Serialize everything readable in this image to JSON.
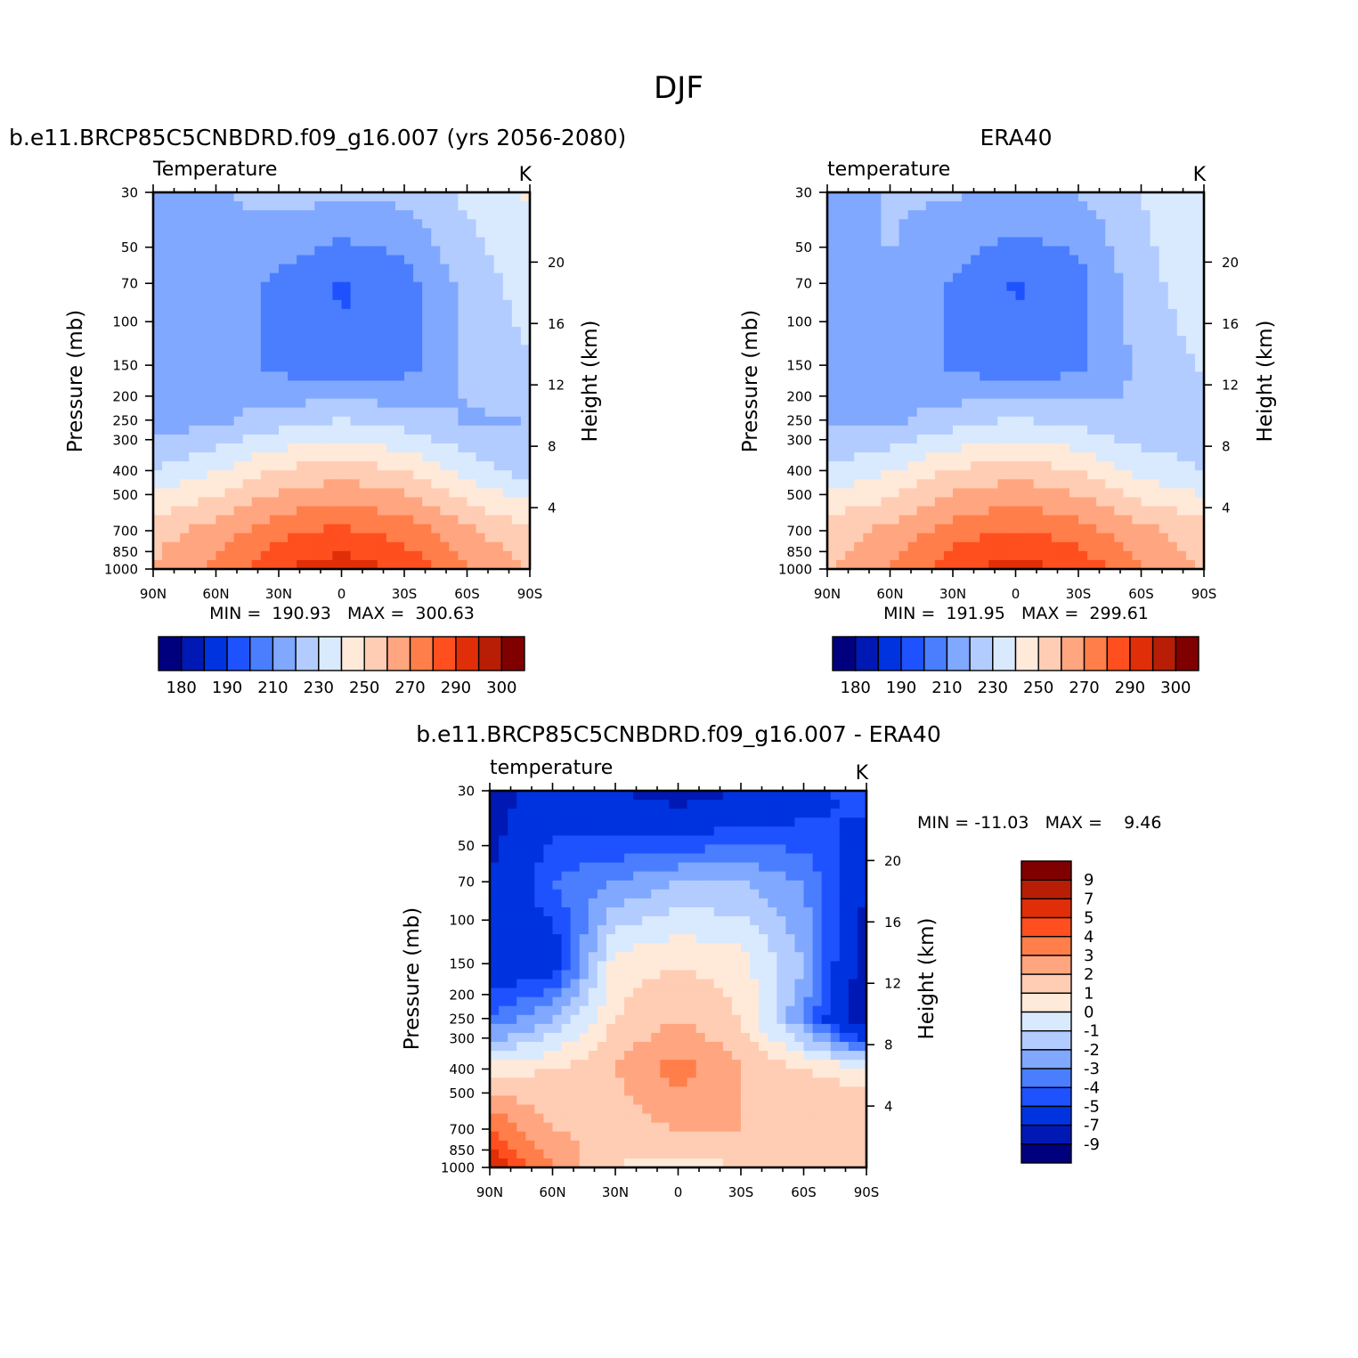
{
  "figure": {
    "title": "DJF"
  },
  "chart_data": [
    {
      "type": "heatmap",
      "id": "model",
      "title": "b.e11.BRCP85C5CNBDRD.f09_g16.007 (yrs 2056-2080)",
      "left_label": "Temperature",
      "units": "K",
      "ylabel": "Pressure (mb)",
      "y2label": "Height (km)",
      "x_ticks": [
        "90N",
        "60N",
        "30N",
        "0",
        "30S",
        "60S",
        "90S"
      ],
      "y_ticks": [
        30,
        50,
        70,
        100,
        150,
        200,
        250,
        300,
        400,
        500,
        700,
        850,
        1000
      ],
      "y2_ticks": [
        4,
        8,
        12,
        16,
        20
      ],
      "ylim": [
        1000,
        30
      ],
      "y_scale": "log",
      "stats_text": "MIN =  190.93   MAX =  300.63",
      "colorbar": {
        "orientation": "horizontal",
        "labels": [
          "180",
          "190",
          "210",
          "230",
          "250",
          "270",
          "290",
          "300"
        ],
        "levels": [
          180,
          185,
          190,
          200,
          210,
          220,
          230,
          240,
          250,
          260,
          270,
          280,
          290,
          295,
          300
        ],
        "colors": [
          "#00007f",
          "#0019b4",
          "#0033e0",
          "#1f52ff",
          "#4a7eff",
          "#80a8ff",
          "#b3ccff",
          "#d9eaff",
          "#ffe9d9",
          "#ffcdb3",
          "#ffa580",
          "#ff7e4a",
          "#ff4f1f",
          "#e02f08",
          "#b81e05",
          "#800000"
        ]
      },
      "grid": {
        "lat": [
          90,
          60,
          30,
          0,
          -30,
          -60,
          -90
        ],
        "levels_mb": [
          30,
          70,
          150,
          250,
          400,
          700,
          1000
        ],
        "values": [
          [
            211,
            219,
            224,
            222,
            223,
            232,
            241
          ],
          [
            213,
            217,
            207,
            199,
            205,
            224,
            235
          ],
          [
            214,
            217,
            207,
            201,
            206,
            222,
            229
          ],
          [
            214,
            218,
            225,
            230,
            225,
            219,
            220
          ],
          [
            231,
            239,
            251,
            256,
            250,
            236,
            226
          ],
          [
            256,
            264,
            277,
            282,
            276,
            262,
            252
          ],
          [
            261,
            272,
            289,
            296,
            288,
            272,
            258
          ]
        ]
      }
    },
    {
      "type": "heatmap",
      "id": "obs",
      "title": "ERA40",
      "left_label": "temperature",
      "units": "K",
      "ylabel": "Pressure (mb)",
      "y2label": "Height (km)",
      "x_ticks": [
        "90N",
        "60N",
        "30N",
        "0",
        "30S",
        "60S",
        "90S"
      ],
      "y_ticks": [
        30,
        50,
        70,
        100,
        150,
        200,
        250,
        300,
        400,
        500,
        700,
        850,
        1000
      ],
      "y2_ticks": [
        4,
        8,
        12,
        16,
        20
      ],
      "ylim": [
        1000,
        30
      ],
      "y_scale": "log",
      "stats_text": "MIN =  191.95   MAX =  299.61",
      "colorbar": {
        "orientation": "horizontal",
        "labels": [
          "180",
          "190",
          "210",
          "230",
          "250",
          "270",
          "290",
          "300"
        ],
        "levels": [
          180,
          185,
          190,
          200,
          210,
          220,
          230,
          240,
          250,
          260,
          270,
          280,
          290,
          295,
          300
        ],
        "colors": [
          "#00007f",
          "#0019b4",
          "#0033e0",
          "#1f52ff",
          "#4a7eff",
          "#80a8ff",
          "#b3ccff",
          "#d9eaff",
          "#ffe9d9",
          "#ffcdb3",
          "#ffa580",
          "#ff7e4a",
          "#ff4f1f",
          "#e02f08",
          "#b81e05",
          "#800000"
        ]
      },
      "grid": {
        "lat": [
          90,
          60,
          30,
          0,
          -30,
          -60,
          -90
        ],
        "levels_mb": [
          30,
          70,
          150,
          250,
          400,
          700,
          1000
        ],
        "values": [
          [
            213,
            221,
            221,
            219,
            220,
            230,
            240
          ],
          [
            215,
            220,
            209,
            199,
            206,
            226,
            237
          ],
          [
            216,
            218,
            208,
            202,
            207,
            223,
            231
          ],
          [
            217,
            218,
            225,
            231,
            226,
            220,
            225
          ],
          [
            232,
            239,
            251,
            256,
            250,
            237,
            229
          ],
          [
            255,
            263,
            275,
            281,
            275,
            263,
            254
          ],
          [
            259,
            270,
            287,
            295,
            287,
            271,
            258
          ]
        ]
      }
    },
    {
      "type": "heatmap",
      "id": "diff",
      "title": "b.e11.BRCP85C5CNBDRD.f09_g16.007 - ERA40",
      "left_label": "temperature",
      "units": "K",
      "ylabel": "Pressure (mb)",
      "y2label": "Height (km)",
      "x_ticks": [
        "90N",
        "60N",
        "30N",
        "0",
        "30S",
        "60S",
        "90S"
      ],
      "y_ticks": [
        30,
        50,
        70,
        100,
        150,
        200,
        250,
        300,
        400,
        500,
        700,
        850,
        1000
      ],
      "y2_ticks": [
        4,
        8,
        12,
        16,
        20
      ],
      "ylim": [
        1000,
        30
      ],
      "y_scale": "log",
      "stats_text": "MIN = -11.03   MAX =    9.46",
      "colorbar": {
        "orientation": "vertical",
        "labels": [
          "9",
          "7",
          "5",
          "4",
          "3",
          "2",
          "1",
          "0",
          "-1",
          "-2",
          "-3",
          "-4",
          "-5",
          "-7",
          "-9"
        ],
        "levels": [
          -9,
          -7,
          -5,
          -4,
          -3,
          -2,
          -1,
          0,
          1,
          2,
          3,
          4,
          5,
          7,
          9
        ],
        "colors": [
          "#00007f",
          "#0019b4",
          "#0033e0",
          "#1f52ff",
          "#4a7eff",
          "#80a8ff",
          "#b3ccff",
          "#d9eaff",
          "#ffe9d9",
          "#ffcdb3",
          "#ffa580",
          "#ff7e4a",
          "#ff4f1f",
          "#e02f08",
          "#b81e05",
          "#800000"
        ]
      },
      "grid": {
        "lat": [
          90,
          60,
          30,
          0,
          -30,
          -60,
          -90
        ],
        "levels_mb": [
          30,
          70,
          150,
          250,
          400,
          700,
          1000
        ],
        "values": [
          [
            -8,
            -6,
            -7,
            -8,
            -7,
            -6,
            -4
          ],
          [
            -7,
            -4,
            -3,
            -2,
            -2,
            -3,
            -7
          ],
          [
            -6,
            -6,
            0.5,
            1,
            0.5,
            -2,
            -8
          ],
          [
            -4,
            -2,
            1,
            2,
            1,
            -3,
            -9
          ],
          [
            0.5,
            1,
            2,
            3.5,
            2,
            1,
            0.5
          ],
          [
            4,
            2,
            1.5,
            2,
            2,
            2,
            2
          ],
          [
            6,
            3,
            1,
            0.5,
            1,
            1.5,
            1
          ]
        ]
      }
    }
  ]
}
